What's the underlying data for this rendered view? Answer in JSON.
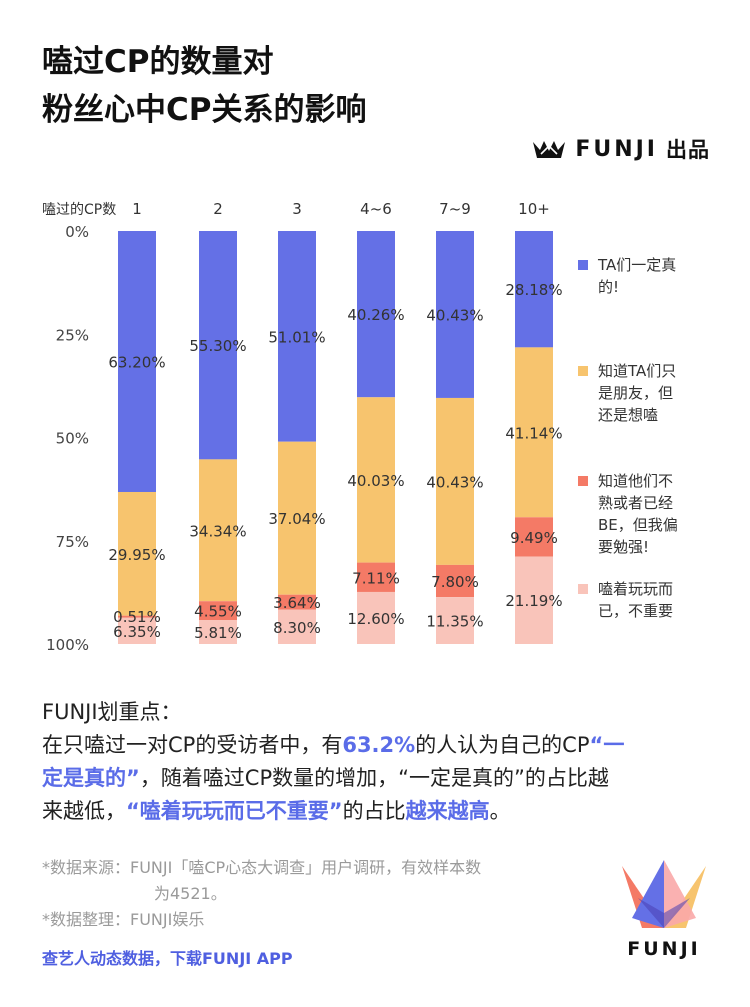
{
  "title": {
    "line1": "嗑过CP的数量对",
    "line2": "粉丝心中CP关系的影响"
  },
  "brand": {
    "name": "FUNJI",
    "suffix": "出品",
    "icon": "crown-icon"
  },
  "colors": {
    "series": [
      "#6470e6",
      "#f7c46e",
      "#f47a66",
      "#f9c4ba"
    ],
    "accent": "#5a6ce8"
  },
  "chart_data": {
    "type": "bar",
    "stacked": true,
    "orientation": "vertical",
    "x_axis_title": "嗑过的CP数",
    "categories": [
      "1",
      "2",
      "3",
      "4~6",
      "7~9",
      "10+"
    ],
    "y_tick_labels": [
      "0%",
      "25%",
      "50%",
      "75%",
      "100%"
    ],
    "ylim": [
      0,
      100
    ],
    "y_inverted": true,
    "grid": false,
    "legend_position": "right",
    "series": [
      {
        "name": "TA们一定真的!",
        "values": [
          63.2,
          55.3,
          51.01,
          40.26,
          40.43,
          28.18
        ],
        "labels": [
          "63.20%",
          "55.30%",
          "51.01%",
          "40.26%",
          "40.43%",
          "28.18%"
        ]
      },
      {
        "name": "知道TA们只是朋友，但还是想嗑",
        "values": [
          29.95,
          34.34,
          37.04,
          40.03,
          40.43,
          41.14
        ],
        "labels": [
          "29.95%",
          "34.34%",
          "37.04%",
          "40.03%",
          "40.43%",
          "41.14%"
        ]
      },
      {
        "name": "知道他们不熟或者已经BE，但我偏要勉强!",
        "values": [
          0.51,
          4.55,
          3.64,
          7.11,
          7.8,
          9.49
        ],
        "labels": [
          "0.51%",
          "4.55%",
          "3.64%",
          "7.11%",
          "7.80%",
          "9.49%"
        ]
      },
      {
        "name": "嗑着玩玩而已，不重要",
        "values": [
          6.35,
          5.81,
          8.3,
          12.6,
          11.35,
          21.19
        ],
        "labels": [
          "6.35%",
          "5.81%",
          "8.30%",
          "12.60%",
          "11.35%",
          "21.19%"
        ]
      }
    ]
  },
  "legend": [
    {
      "lines": [
        "TA们一定真",
        "的!"
      ]
    },
    {
      "lines": [
        "知道TA们只",
        "是朋友，但",
        "还是想嗑"
      ]
    },
    {
      "lines": [
        "知道他们不",
        "熟或者已经",
        "BE，但我偏",
        "要勉强!"
      ]
    },
    {
      "lines": [
        "嗑着玩玩而",
        "已，不重要"
      ]
    }
  ],
  "insight": {
    "heading": "FUNJI划重点：",
    "line1_a": "在只嗑过一对CP的受访者中，有",
    "line1_hl1": "63.2%",
    "line1_b": "的人认为自己的CP",
    "line1_hl2": "“一",
    "line2_hl": "定是真的”",
    "line2_b": "，随着嗑过CP数量的增加，“一定是真的”的占比越",
    "line3_a": "来越低，",
    "line3_hl1": "“嗑着玩玩而已不重要”",
    "line3_b": "的占比",
    "line3_hl2": "越来越高",
    "line3_c": "。"
  },
  "notes": {
    "source": "*数据来源：FUNJI「嗑CP心态大调查」用户调研，有效样本数",
    "source_cont": "为4521。",
    "organizer": "*数据整理：FUNJI娱乐"
  },
  "cta": "查艺人动态数据，下载FUNJI APP",
  "logo": {
    "word": "FUNJI",
    "icon": "funji-crown-logo-icon"
  }
}
